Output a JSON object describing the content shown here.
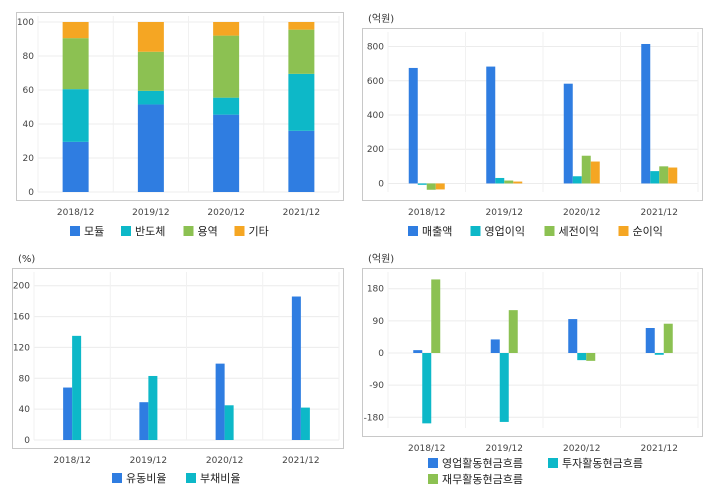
{
  "chart_data": [
    {
      "id": "sales-mix",
      "type": "bar",
      "stacked": true,
      "unit": "",
      "categories": [
        "2018/12",
        "2019/12",
        "2020/12",
        "2021/12"
      ],
      "ylim": [
        0,
        100
      ],
      "yticks": [
        0,
        20,
        40,
        60,
        80,
        100
      ],
      "series": [
        {
          "name": "모듈",
          "color": "#2f7de1",
          "values": [
            29.5,
            51.5,
            45.5,
            36
          ]
        },
        {
          "name": "반도체",
          "color": "#0db8c8",
          "values": [
            31,
            8,
            10,
            33.5
          ]
        },
        {
          "name": "용역",
          "color": "#8cc152",
          "values": [
            30,
            23,
            36.5,
            26
          ]
        },
        {
          "name": "기타",
          "color": "#f5a623",
          "values": [
            9.5,
            17.5,
            8,
            4.5
          ]
        }
      ],
      "legend_position": "bottom",
      "grid": true
    },
    {
      "id": "income",
      "type": "bar",
      "unit": "(억원)",
      "categories": [
        "2018/12",
        "2019/12",
        "2020/12",
        "2021/12"
      ],
      "ylim": [
        -50,
        850
      ],
      "yticks": [
        0,
        200,
        400,
        600,
        800
      ],
      "series": [
        {
          "name": "매출액",
          "color": "#2f7de1",
          "values": [
            675,
            683,
            583,
            815
          ]
        },
        {
          "name": "영업이익",
          "color": "#0db8c8",
          "values": [
            -8,
            32,
            42,
            72
          ]
        },
        {
          "name": "세전이익",
          "color": "#8cc152",
          "values": [
            -37,
            17,
            162,
            100
          ]
        },
        {
          "name": "순이익",
          "color": "#f5a623",
          "values": [
            -35,
            11,
            128,
            93
          ]
        }
      ],
      "legend_position": "bottom",
      "grid": true
    },
    {
      "id": "ratios",
      "type": "bar",
      "unit": "(%)",
      "categories": [
        "2018/12",
        "2019/12",
        "2020/12",
        "2021/12"
      ],
      "ylim": [
        0,
        210
      ],
      "yticks": [
        0,
        40,
        80,
        120,
        160,
        200
      ],
      "series": [
        {
          "name": "유동비율",
          "color": "#2f7de1",
          "values": [
            68,
            49,
            99,
            186
          ]
        },
        {
          "name": "부채비율",
          "color": "#0db8c8",
          "values": [
            135,
            83,
            45,
            42
          ]
        }
      ],
      "legend_position": "bottom",
      "grid": true
    },
    {
      "id": "cashflow",
      "type": "bar",
      "unit": "(억원)",
      "categories": [
        "2018/12",
        "2019/12",
        "2020/12",
        "2021/12"
      ],
      "ylim": [
        -210,
        210
      ],
      "yticks": [
        -180,
        -90,
        0,
        90,
        180
      ],
      "series": [
        {
          "name": "영업활동현금흐름",
          "color": "#2f7de1",
          "values": [
            8,
            38,
            95,
            70
          ]
        },
        {
          "name": "투자활동현금흐름",
          "color": "#0db8c8",
          "values": [
            -197,
            -193,
            -20,
            -5
          ]
        },
        {
          "name": "재무활동현금흐름",
          "color": "#8cc152",
          "values": [
            206,
            120,
            -22,
            82
          ]
        }
      ],
      "legend_position": "bottom",
      "grid": true
    }
  ]
}
